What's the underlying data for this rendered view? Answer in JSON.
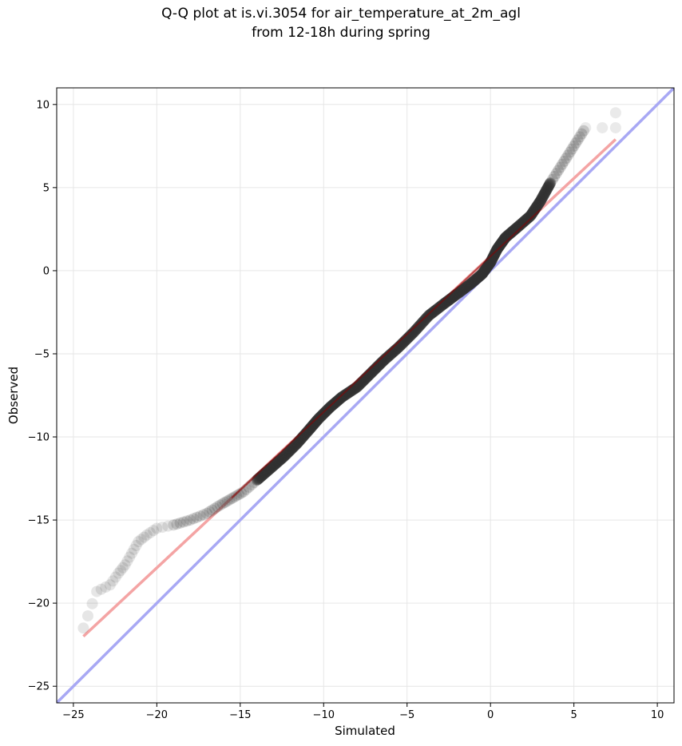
{
  "chart_data": {
    "type": "scatter",
    "title": "Q-Q plot at is.vi.3054 for air_temperature_at_2m_agl",
    "subtitle": "from 12-18h during spring",
    "xlabel": "Simulated",
    "ylabel": "Observed",
    "xlim": [
      -26,
      11
    ],
    "ylim": [
      -26,
      11
    ],
    "xticks": [
      -25,
      -20,
      -15,
      -10,
      -5,
      0,
      5,
      10
    ],
    "yticks": [
      -25,
      -20,
      -15,
      -10,
      -5,
      0,
      5,
      10
    ],
    "xtick_labels": [
      "−25",
      "−20",
      "−15",
      "−10",
      "−5",
      "0",
      "5",
      "10"
    ],
    "ytick_labels": [
      "−25",
      "−20",
      "−15",
      "−10",
      "−5",
      "0",
      "5",
      "10"
    ],
    "grid": true,
    "legend": false,
    "colors": {
      "points": "#333333",
      "fit_line": "#f4a4a4",
      "identity_line": "#a8a8f4",
      "fit_overlay": "#8b0000"
    },
    "reference_lines": {
      "identity": {
        "x": [
          -26,
          11
        ],
        "y": [
          -26,
          11
        ]
      },
      "fit": {
        "x": [
          -24.4,
          7.5
        ],
        "y": [
          -22.0,
          7.9
        ]
      }
    },
    "quantile_curve": [
      {
        "x": -24.4,
        "y": -21.5
      },
      {
        "x": -23.6,
        "y": -19.3
      },
      {
        "x": -22.8,
        "y": -18.9
      },
      {
        "x": -22.3,
        "y": -18.2
      },
      {
        "x": -21.9,
        "y": -17.7
      },
      {
        "x": -21.5,
        "y": -17.0
      },
      {
        "x": -21.1,
        "y": -16.3
      },
      {
        "x": -20.6,
        "y": -15.9
      },
      {
        "x": -20.0,
        "y": -15.5
      },
      {
        "x": -19.0,
        "y": -15.3
      },
      {
        "x": -18.0,
        "y": -15.0
      },
      {
        "x": -17.0,
        "y": -14.6
      },
      {
        "x": -16.2,
        "y": -14.1
      },
      {
        "x": -15.5,
        "y": -13.7
      },
      {
        "x": -14.8,
        "y": -13.3
      },
      {
        "x": -14.0,
        "y": -12.6
      },
      {
        "x": -13.2,
        "y": -11.9
      },
      {
        "x": -12.4,
        "y": -11.2
      },
      {
        "x": -11.6,
        "y": -10.4
      },
      {
        "x": -10.9,
        "y": -9.6
      },
      {
        "x": -10.3,
        "y": -8.9
      },
      {
        "x": -9.6,
        "y": -8.2
      },
      {
        "x": -8.9,
        "y": -7.6
      },
      {
        "x": -8.0,
        "y": -7.0
      },
      {
        "x": -7.2,
        "y": -6.2
      },
      {
        "x": -6.4,
        "y": -5.4
      },
      {
        "x": -5.5,
        "y": -4.6
      },
      {
        "x": -4.6,
        "y": -3.7
      },
      {
        "x": -3.7,
        "y": -2.7
      },
      {
        "x": -2.8,
        "y": -2.0
      },
      {
        "x": -2.0,
        "y": -1.4
      },
      {
        "x": -1.2,
        "y": -0.8
      },
      {
        "x": -0.5,
        "y": -0.2
      },
      {
        "x": 0.0,
        "y": 0.5
      },
      {
        "x": 0.4,
        "y": 1.3
      },
      {
        "x": 0.9,
        "y": 2.0
      },
      {
        "x": 1.6,
        "y": 2.6
      },
      {
        "x": 2.4,
        "y": 3.3
      },
      {
        "x": 3.0,
        "y": 4.2
      },
      {
        "x": 3.6,
        "y": 5.3
      },
      {
        "x": 4.3,
        "y": 6.4
      },
      {
        "x": 5.0,
        "y": 7.5
      },
      {
        "x": 5.7,
        "y": 8.6
      },
      {
        "x": 6.7,
        "y": 8.6
      },
      {
        "x": 7.5,
        "y": 8.6
      },
      {
        "x": 7.5,
        "y": 9.5
      }
    ]
  }
}
